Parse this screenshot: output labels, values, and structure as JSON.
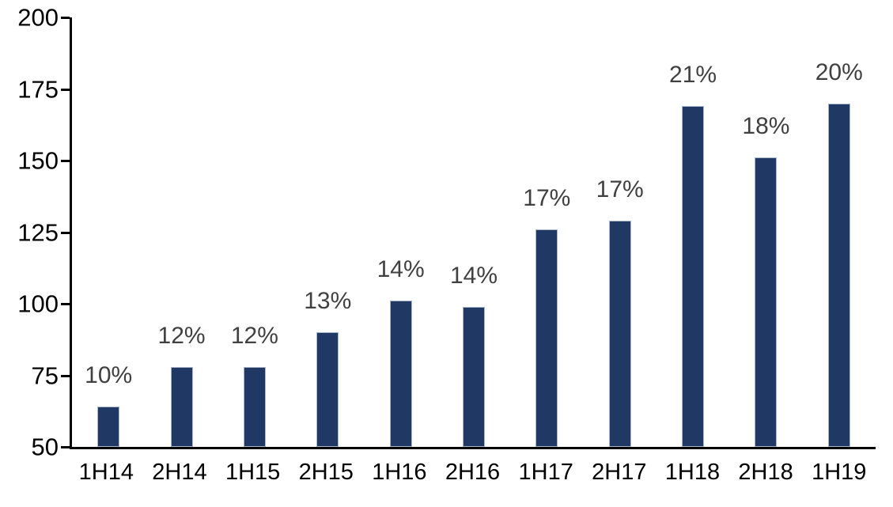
{
  "chart_data": {
    "type": "bar",
    "title": "",
    "xlabel": "",
    "ylabel": "",
    "categories": [
      "1H14",
      "2H14",
      "1H15",
      "2H15",
      "1H16",
      "2H16",
      "1H17",
      "2H17",
      "1H18",
      "2H18",
      "1H19"
    ],
    "values": [
      64,
      78,
      78,
      90,
      101,
      99,
      126,
      129,
      169,
      151,
      170
    ],
    "bar_labels": [
      "10%",
      "12%",
      "12%",
      "13%",
      "14%",
      "14%",
      "17%",
      "17%",
      "21%",
      "18%",
      "20%"
    ],
    "ylim": [
      50,
      200
    ],
    "yticks": [
      50,
      75,
      100,
      125,
      150,
      175,
      200
    ],
    "grid": false,
    "legend_position": "none",
    "colors": {
      "bar_fill": "#1F3864",
      "bar_border": "#A9B6CB",
      "data_label": "#404040",
      "axis": "#000000",
      "axis_tick_label": "#000000",
      "background": "#FFFFFF"
    }
  }
}
